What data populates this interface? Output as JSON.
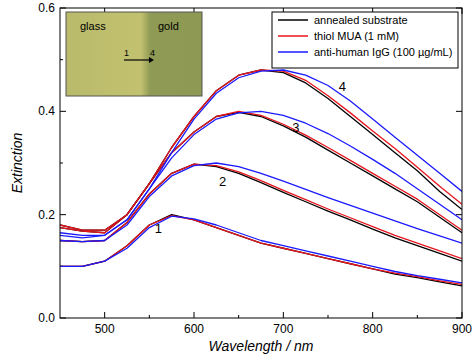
{
  "chart_data": {
    "type": "line",
    "x_label": "Wavelength / nm",
    "y_label": "Extinction",
    "xlim": [
      450,
      900
    ],
    "xticks": [
      500,
      600,
      700,
      800,
      900
    ],
    "ylim": [
      0,
      0.6
    ],
    "yticks": [
      {
        "value": 0,
        "label": "0.0"
      },
      {
        "value": 0.2,
        "label": "0.2"
      },
      {
        "value": 0.4,
        "label": "0.4"
      },
      {
        "value": 0.6,
        "label": "0.6"
      }
    ],
    "legend": "upper right",
    "x": [
      450,
      475,
      500,
      525,
      550,
      575,
      600,
      625,
      650,
      675,
      700,
      725,
      750,
      775,
      800,
      825,
      850,
      875,
      900
    ],
    "series": [
      {
        "name": "annealed substrate",
        "color": "#000000",
        "values": [
          0.1,
          0.1,
          0.11,
          0.14,
          0.18,
          0.2,
          0.19,
          0.175,
          0.16,
          0.145,
          0.135,
          0.125,
          0.115,
          0.105,
          0.095,
          0.085,
          0.078,
          0.07,
          0.062
        ]
      },
      {
        "name": "thiol MUA (1 mM)",
        "color": "#e8141c",
        "values": [
          0.1,
          0.1,
          0.11,
          0.14,
          0.18,
          0.198,
          0.19,
          0.175,
          0.16,
          0.145,
          0.135,
          0.125,
          0.115,
          0.105,
          0.095,
          0.087,
          0.08,
          0.072,
          0.065
        ]
      },
      {
        "name": "anti-human IgG (100 µg/mL)",
        "color": "#1a1aff",
        "values": [
          0.1,
          0.1,
          0.11,
          0.135,
          0.175,
          0.197,
          0.192,
          0.18,
          0.165,
          0.15,
          0.14,
          0.13,
          0.12,
          0.11,
          0.1,
          0.09,
          0.082,
          0.075,
          0.068
        ]
      },
      {
        "name": "annealed substrate",
        "color": "#000000",
        "values": [
          0.15,
          0.148,
          0.15,
          0.185,
          0.24,
          0.28,
          0.298,
          0.293,
          0.28,
          0.262,
          0.243,
          0.225,
          0.207,
          0.19,
          0.172,
          0.155,
          0.14,
          0.125,
          0.11
        ]
      },
      {
        "name": "thiol MUA (1 mM)",
        "color": "#e8141c",
        "values": [
          0.15,
          0.148,
          0.15,
          0.185,
          0.24,
          0.28,
          0.298,
          0.295,
          0.283,
          0.266,
          0.247,
          0.229,
          0.211,
          0.194,
          0.177,
          0.16,
          0.145,
          0.13,
          0.115
        ]
      },
      {
        "name": "anti-human IgG (100 µg/mL)",
        "color": "#1a1aff",
        "values": [
          0.15,
          0.148,
          0.15,
          0.18,
          0.235,
          0.275,
          0.295,
          0.3,
          0.293,
          0.28,
          0.265,
          0.249,
          0.233,
          0.218,
          0.203,
          0.188,
          0.173,
          0.159,
          0.145
        ]
      },
      {
        "name": "annealed substrate",
        "color": "#000000",
        "values": [
          0.175,
          0.168,
          0.165,
          0.2,
          0.26,
          0.32,
          0.36,
          0.39,
          0.398,
          0.39,
          0.372,
          0.35,
          0.325,
          0.3,
          0.275,
          0.25,
          0.225,
          0.195,
          0.165
        ]
      },
      {
        "name": "thiol MUA (1 mM)",
        "color": "#e8141c",
        "values": [
          0.175,
          0.168,
          0.165,
          0.2,
          0.26,
          0.32,
          0.36,
          0.39,
          0.4,
          0.392,
          0.375,
          0.354,
          0.33,
          0.305,
          0.28,
          0.255,
          0.23,
          0.2,
          0.17
        ]
      },
      {
        "name": "anti-human IgG (100 µg/mL)",
        "color": "#1a1aff",
        "values": [
          0.165,
          0.16,
          0.16,
          0.19,
          0.25,
          0.31,
          0.355,
          0.385,
          0.397,
          0.4,
          0.392,
          0.377,
          0.357,
          0.333,
          0.307,
          0.28,
          0.25,
          0.22,
          0.19
        ]
      },
      {
        "name": "annealed substrate",
        "color": "#000000",
        "values": [
          0.18,
          0.17,
          0.17,
          0.2,
          0.26,
          0.33,
          0.39,
          0.44,
          0.47,
          0.48,
          0.475,
          0.455,
          0.425,
          0.39,
          0.355,
          0.32,
          0.285,
          0.245,
          0.21
        ]
      },
      {
        "name": "thiol MUA (1 mM)",
        "color": "#e8141c",
        "values": [
          0.18,
          0.17,
          0.17,
          0.2,
          0.26,
          0.33,
          0.39,
          0.44,
          0.47,
          0.48,
          0.478,
          0.46,
          0.43,
          0.397,
          0.362,
          0.328,
          0.292,
          0.255,
          0.22
        ]
      },
      {
        "name": "anti-human IgG (100 µg/mL)",
        "color": "#1a1aff",
        "values": [
          0.16,
          0.155,
          0.16,
          0.19,
          0.25,
          0.32,
          0.385,
          0.435,
          0.465,
          0.478,
          0.48,
          0.47,
          0.45,
          0.42,
          0.385,
          0.35,
          0.315,
          0.28,
          0.245
        ]
      }
    ],
    "annotations": [
      {
        "text": "1",
        "x": 560,
        "y": 0.165
      },
      {
        "text": "2",
        "x": 632,
        "y": 0.255
      },
      {
        "text": "3",
        "x": 714,
        "y": 0.36
      },
      {
        "text": "4",
        "x": 766,
        "y": 0.44
      }
    ],
    "inset": {
      "left": "glass",
      "right": "gold",
      "start": "1",
      "end": "4"
    }
  }
}
